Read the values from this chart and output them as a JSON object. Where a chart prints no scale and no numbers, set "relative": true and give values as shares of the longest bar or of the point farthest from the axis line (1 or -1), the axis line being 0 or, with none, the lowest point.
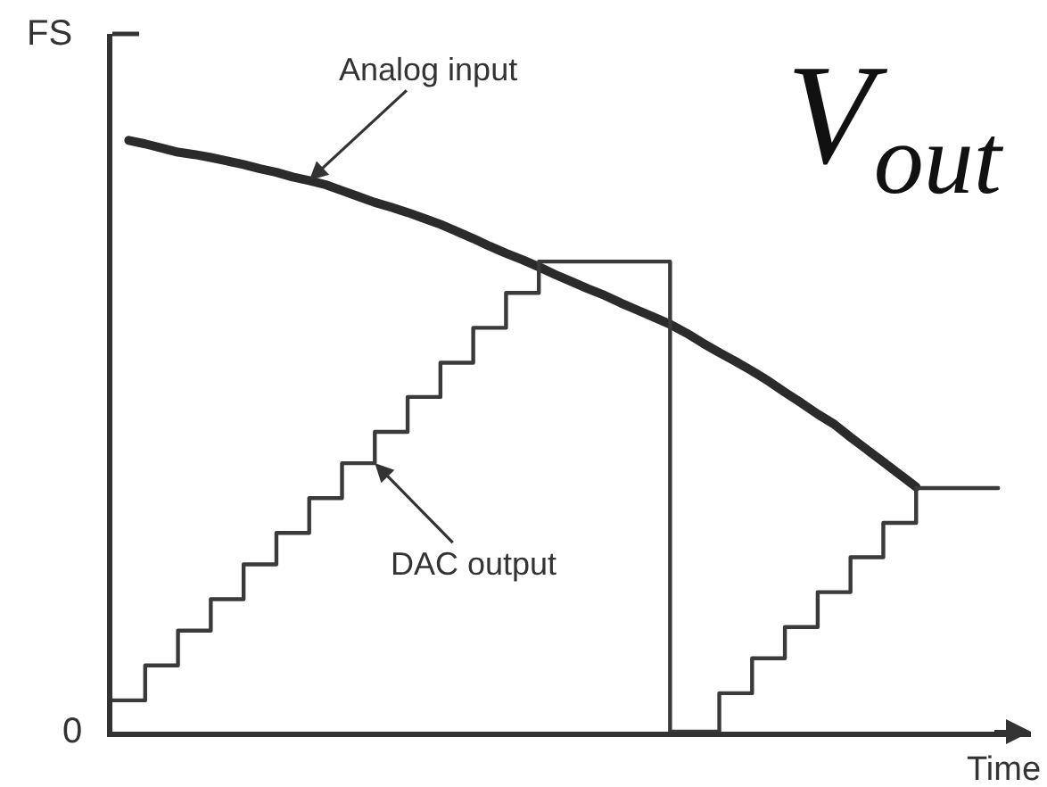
{
  "chart_data": {
    "type": "line",
    "xlabel": "Time",
    "ylabel": "V$_{out}$",
    "relative": true,
    "annotations": [
      "FS",
      "0"
    ],
    "categories": [
      null,
      null,
      null,
      null,
      null,
      null,
      null,
      null,
      null,
      null,
      null,
      null,
      null,
      null,
      null,
      null,
      null,
      null,
      null,
      null,
      null,
      null,
      null,
      null,
      null,
      null,
      null,
      null,
      null,
      null,
      null,
      null,
      null,
      null,
      null,
      null,
      null,
      null,
      null,
      null,
      null,
      null,
      null,
      null,
      null,
      null,
      null,
      null,
      null,
      null,
      null,
      null,
      null,
      null,
      null,
      null,
      null
    ],
    "series": [
      {
        "name": "Analog input",
        "color": "#2b2b2b",
        "values": [
          null,
          1.0,
          0.994,
          0.987,
          0.98,
          0.976,
          0.971,
          0.965,
          0.959,
          0.952,
          0.946,
          0.938,
          0.932,
          0.925,
          0.915,
          0.905,
          0.895,
          0.887,
          0.878,
          0.868,
          0.858,
          0.846,
          0.834,
          0.821,
          0.809,
          0.798,
          0.786,
          0.773,
          0.761,
          0.749,
          0.738,
          0.725,
          0.713,
          0.701,
          0.689,
          0.674,
          0.657,
          0.641,
          0.626,
          0.61,
          0.593,
          0.574,
          0.556,
          0.537,
          0.52,
          0.498,
          0.477,
          0.456,
          0.435,
          0.414,
          null,
          null,
          null,
          null,
          null,
          null,
          null
        ]
      },
      {
        "name": "DAC output",
        "type": "step",
        "color": "#3a3a3a",
        "values": [
          0.053,
          0.053,
          0.112,
          0.112,
          0.171,
          0.171,
          0.224,
          0.224,
          0.283,
          0.283,
          0.336,
          0.336,
          0.395,
          0.395,
          0.454,
          0.454,
          0.507,
          0.507,
          0.566,
          0.566,
          0.624,
          0.624,
          0.683,
          0.683,
          0.742,
          0.742,
          0.795,
          0.795,
          0.795,
          0.795,
          0.795,
          0.795,
          0.795,
          0.795,
          0,
          0,
          0,
          0.065,
          0.065,
          0.124,
          0.124,
          0.177,
          0.177,
          0.236,
          0.236,
          0.295,
          0.295,
          0.353,
          0.353,
          0.412,
          0.412,
          0.412,
          0.412,
          0.412,
          0.412,
          null,
          null
        ]
      }
    ]
  }
}
